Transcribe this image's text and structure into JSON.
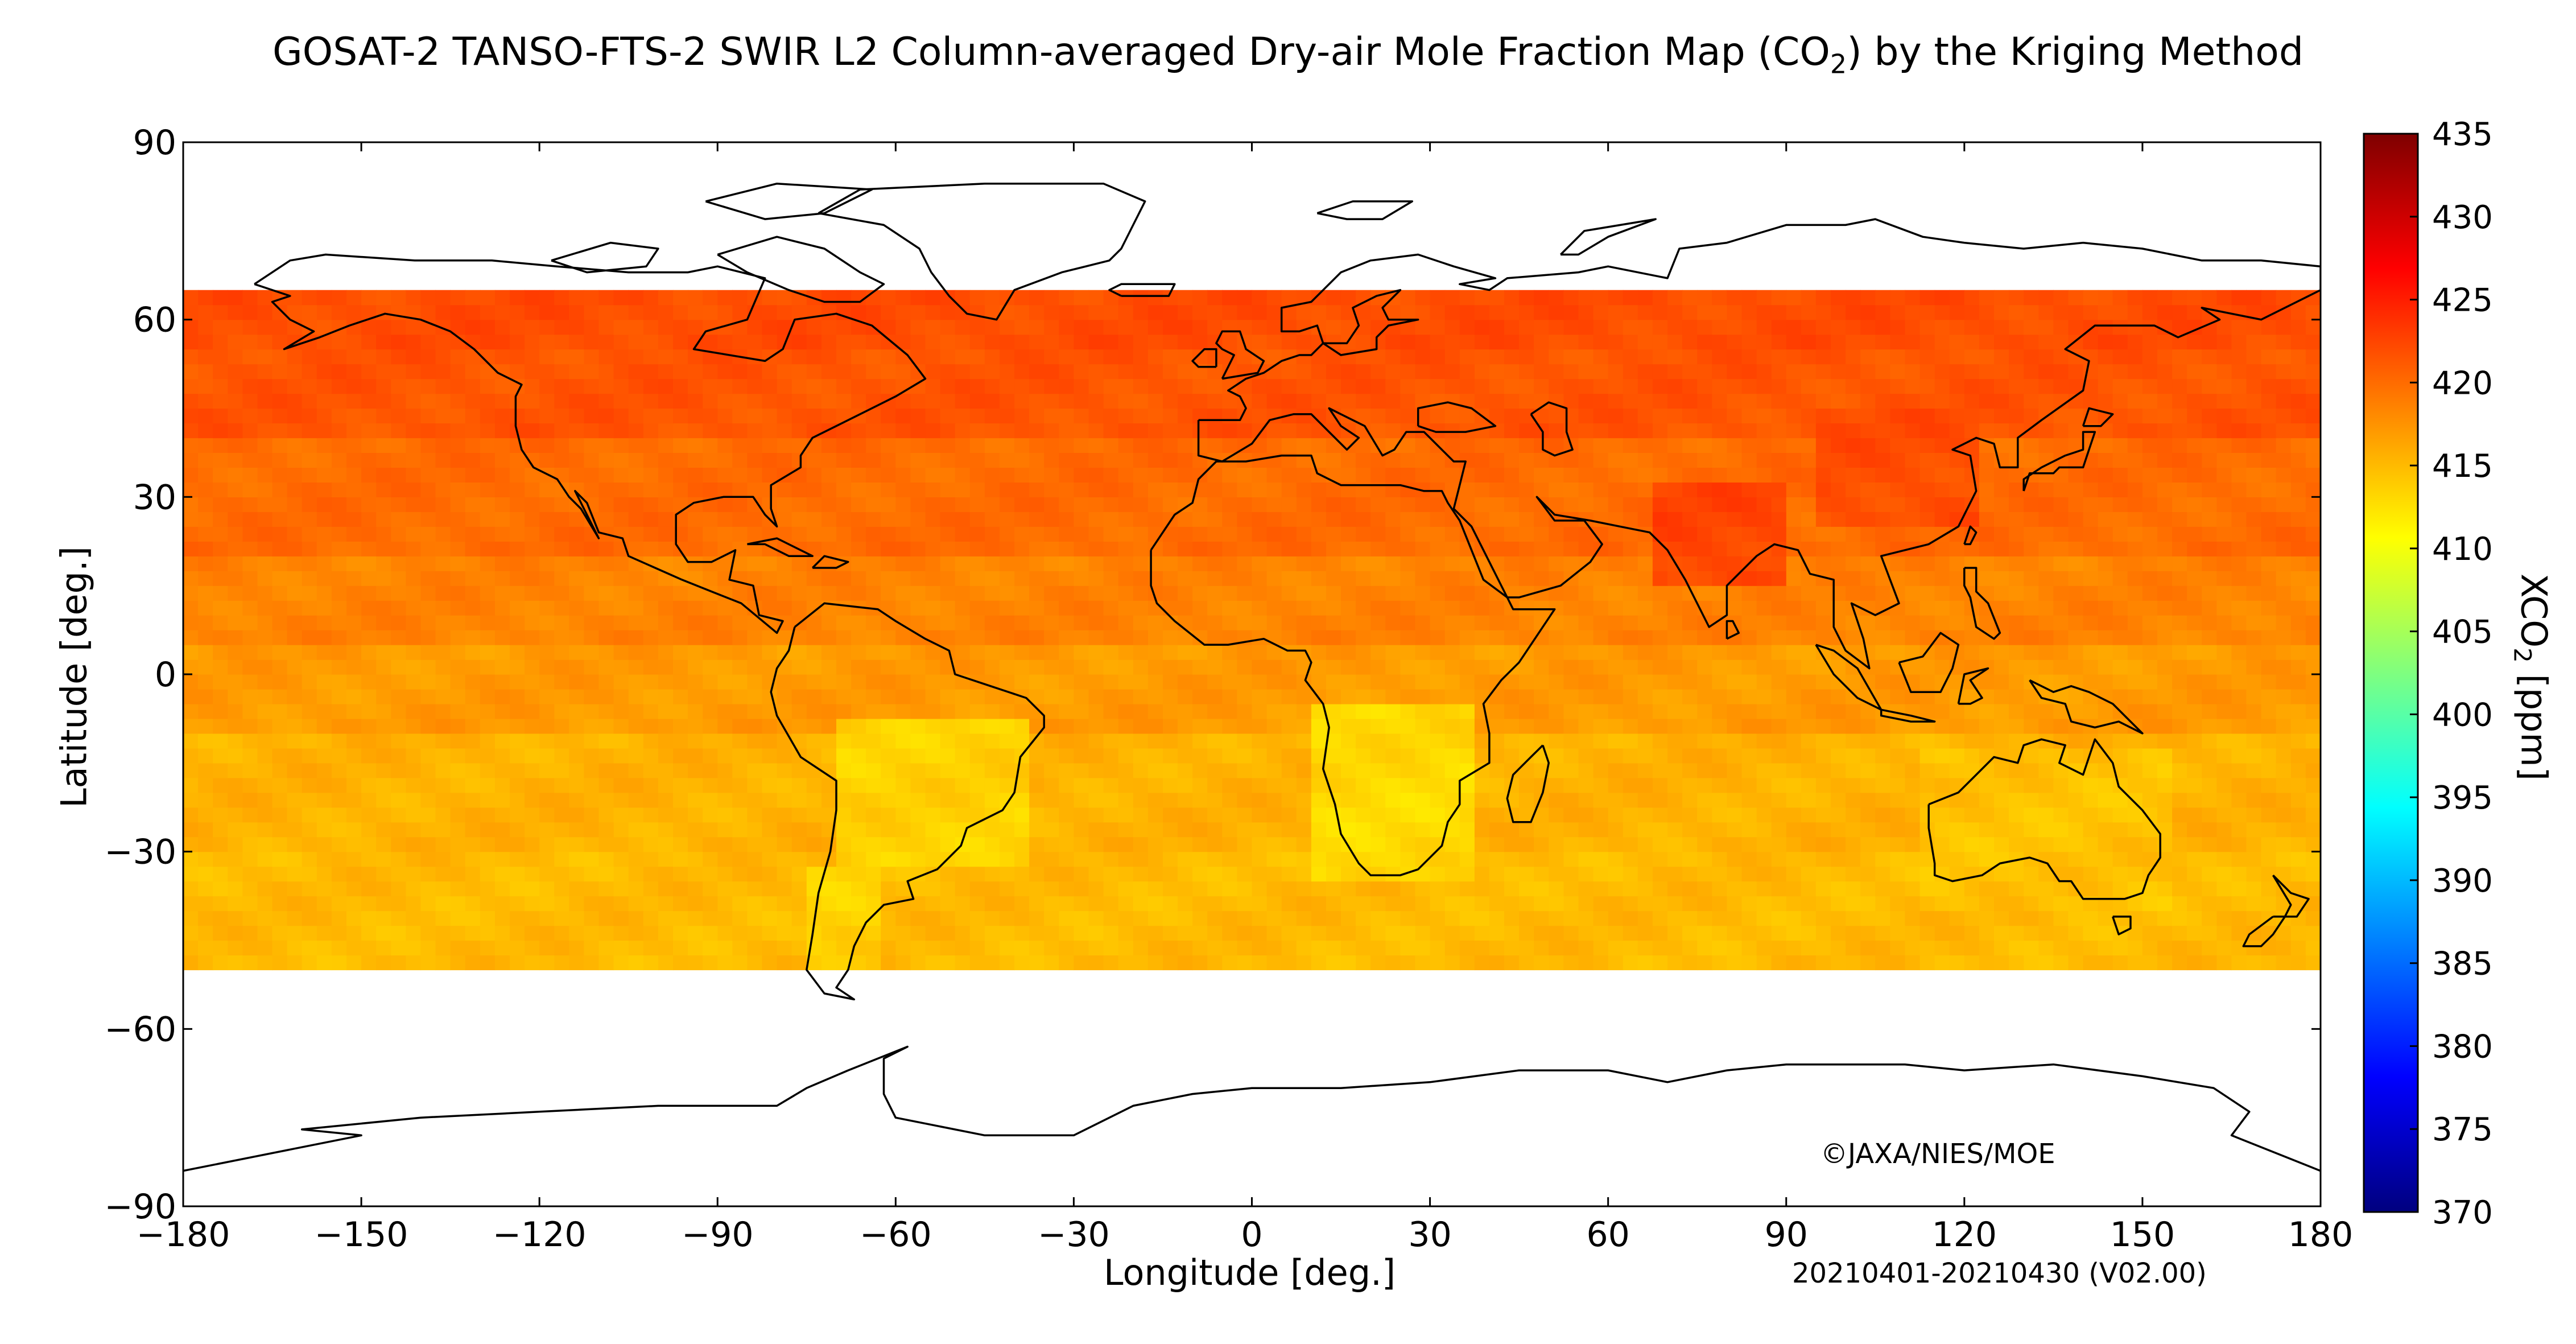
{
  "title": {
    "prefix": "GOSAT-2 TANSO-FTS-2 SWIR L2 Column-averaged Dry-air Mole Fraction Map (CO",
    "subscript": "2",
    "suffix": ") by the Kriging Method"
  },
  "credit": "©JAXA/NIES/MOE",
  "period": "20210401-20210430 (V02.00)",
  "axes": {
    "xlabel": "Longitude [deg.]",
    "ylabel": "Latitude [deg.]",
    "xticks": [
      "−180",
      "−150",
      "−120",
      "−90",
      "−60",
      "−30",
      "0",
      "30",
      "60",
      "90",
      "120",
      "150",
      "180"
    ],
    "yticks": [
      "90",
      "60",
      "30",
      "0",
      "−30",
      "−60",
      "−90"
    ]
  },
  "colorbar": {
    "label_prefix": "XCO",
    "label_sub": "2",
    "label_suffix": " [ppm]",
    "ticks": [
      "435",
      "430",
      "425",
      "420",
      "415",
      "410",
      "405",
      "400",
      "395",
      "390",
      "385",
      "380",
      "375",
      "370"
    ],
    "min": 370,
    "max": 435,
    "colormap": [
      "#00007f",
      "#0000ff",
      "#007fff",
      "#00ffff",
      "#7fff7f",
      "#ffff00",
      "#ff7f00",
      "#ff0000",
      "#7f0000"
    ]
  },
  "chart_data": {
    "type": "heatmap",
    "title": "GOSAT-2 TANSO-FTS-2 SWIR L2 Column-averaged Dry-air Mole Fraction Map (CO2) by the Kriging Method",
    "xlabel": "Longitude [deg.]",
    "ylabel": "Latitude [deg.]",
    "xlim": [
      -180,
      180
    ],
    "ylim": [
      -90,
      90
    ],
    "colorbar_label": "XCO2 [ppm]",
    "color_range": [
      370,
      435
    ],
    "grid": false,
    "cell_size_deg": 2.5,
    "data_extent_lat": [
      -50,
      65
    ],
    "approximate_xco2_by_latitude_band": [
      {
        "lat_range": [
          55,
          65
        ],
        "xco2": 422
      },
      {
        "lat_range": [
          40,
          55
        ],
        "xco2": 421.5
      },
      {
        "lat_range": [
          20,
          40
        ],
        "xco2": 420
      },
      {
        "lat_range": [
          5,
          20
        ],
        "xco2": 418.5
      },
      {
        "lat_range": [
          -10,
          5
        ],
        "xco2": 417
      },
      {
        "lat_range": [
          -30,
          -10
        ],
        "xco2": 415.5
      },
      {
        "lat_range": [
          -50,
          -30
        ],
        "xco2": 415
      }
    ],
    "notable_regions": [
      {
        "region": "South Asia / northern India",
        "xco2": 422.5
      },
      {
        "region": "East Asia / China",
        "xco2": 422
      },
      {
        "region": "Southern Africa",
        "xco2": 413
      },
      {
        "region": "Central South America",
        "xco2": 413.5
      },
      {
        "region": "Australia",
        "xco2": 414.5
      },
      {
        "region": "Southern South America",
        "xco2": 413.5
      }
    ]
  }
}
